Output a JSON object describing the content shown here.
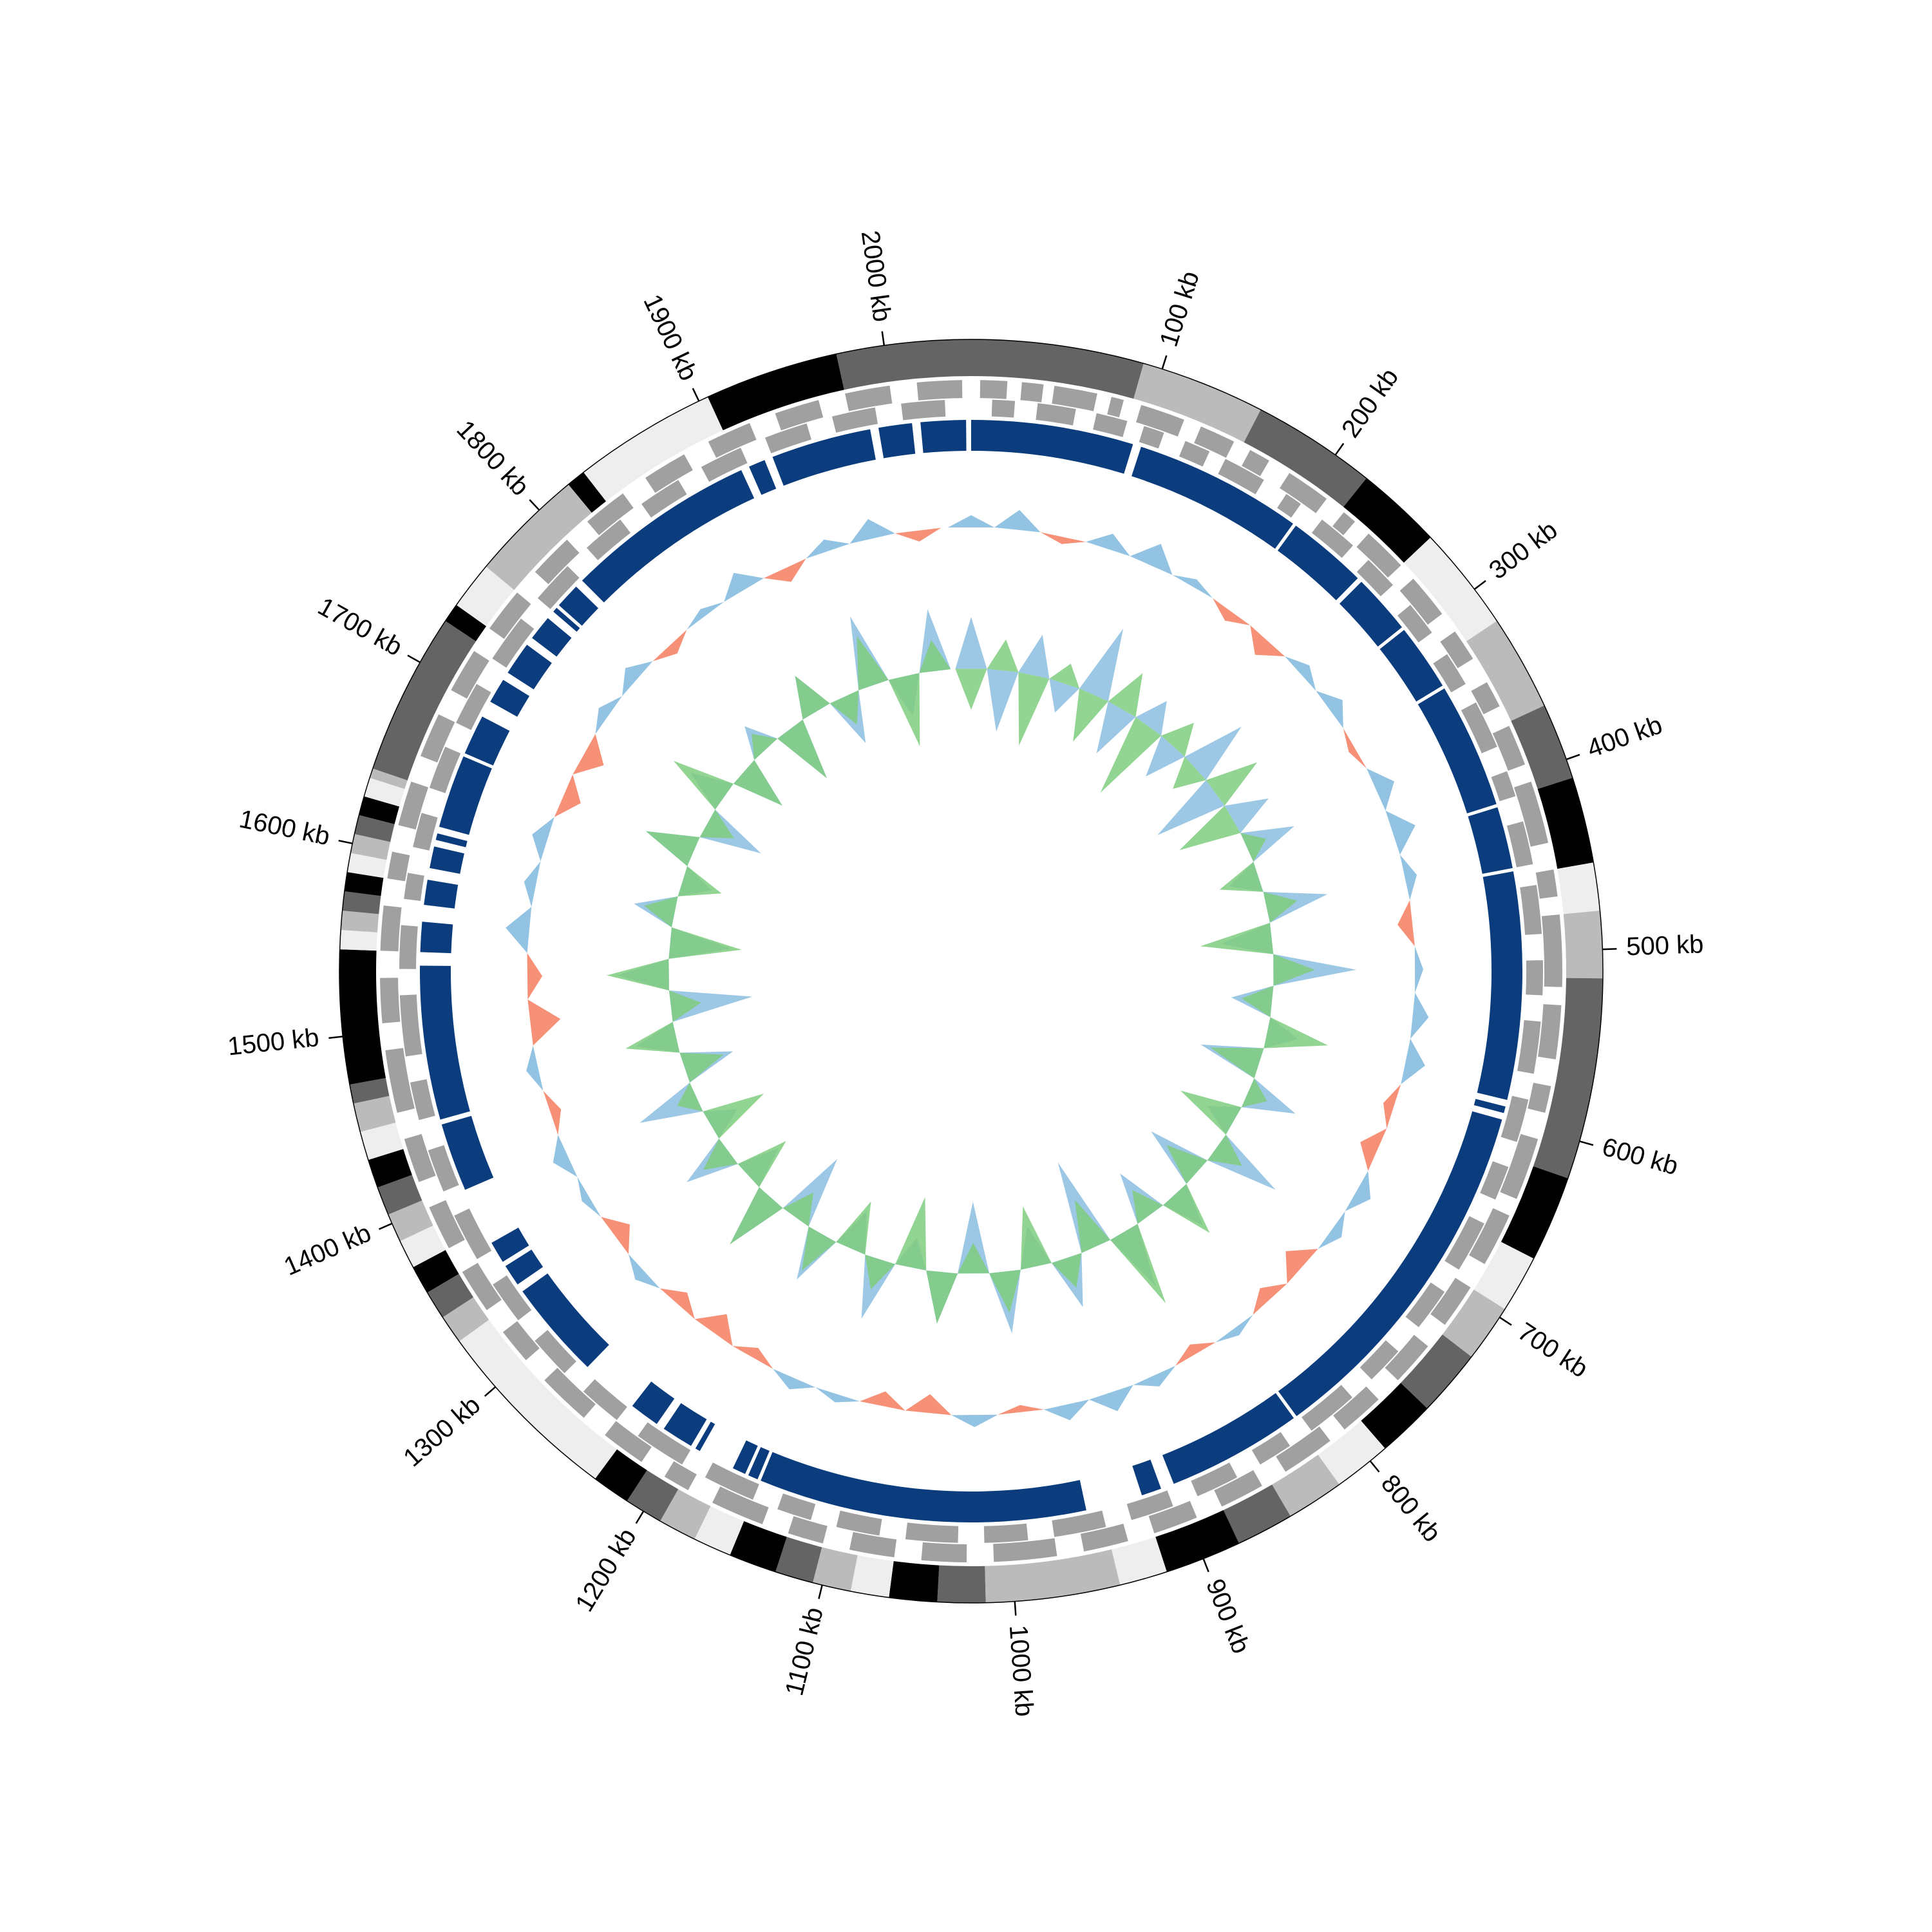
{
  "chart_data": {
    "type": "circos",
    "xlim": [
      0,
      2045
    ],
    "xticks": [
      {
        "value": 100,
        "label": "100 kb"
      },
      {
        "value": 200,
        "label": "200 kb"
      },
      {
        "value": 300,
        "label": "300 kb"
      },
      {
        "value": 400,
        "label": "400 kb"
      },
      {
        "value": 500,
        "label": "500 kb"
      },
      {
        "value": 600,
        "label": "600 kb"
      },
      {
        "value": 700,
        "label": "700 kb"
      },
      {
        "value": 800,
        "label": "800 kb"
      },
      {
        "value": 900,
        "label": "900 kb"
      },
      {
        "value": 1000,
        "label": "1000 kb"
      },
      {
        "value": 1100,
        "label": "1100 kb"
      },
      {
        "value": 1200,
        "label": "1200 kb"
      },
      {
        "value": 1300,
        "label": "1300 kb"
      },
      {
        "value": 1400,
        "label": "1400 kb"
      },
      {
        "value": 1500,
        "label": "1500 kb"
      },
      {
        "value": 1600,
        "label": "1600 kb"
      },
      {
        "value": 1700,
        "label": "1700 kb"
      },
      {
        "value": 1800,
        "label": "1800 kb"
      },
      {
        "value": 1900,
        "label": "1900 kb"
      },
      {
        "value": 2000,
        "label": "2000 kb"
      }
    ],
    "bands": [
      [
        0,
        90,
        "#646464"
      ],
      [
        90,
        155,
        "#bbbbbb"
      ],
      [
        155,
        220,
        "#646464"
      ],
      [
        220,
        265,
        "#000000"
      ],
      [
        265,
        320,
        "#eeeeee"
      ],
      [
        320,
        370,
        "#bbbbbb"
      ],
      [
        370,
        410,
        "#646464"
      ],
      [
        410,
        455,
        "#000000"
      ],
      [
        455,
        480,
        "#eeeeee"
      ],
      [
        480,
        515,
        "#bbbbbb"
      ],
      [
        515,
        620,
        "#646464"
      ],
      [
        620,
        665,
        "#000000"
      ],
      [
        665,
        695,
        "#eeeeee"
      ],
      [
        695,
        725,
        "#bbbbbb"
      ],
      [
        725,
        760,
        "#646464"
      ],
      [
        760,
        790,
        "#000000"
      ],
      [
        790,
        820,
        "#eeeeee"
      ],
      [
        820,
        850,
        "#bbbbbb"
      ],
      [
        850,
        880,
        "#646464"
      ],
      [
        880,
        920,
        "#000000"
      ],
      [
        920,
        945,
        "#eeeeee"
      ],
      [
        945,
        1015,
        "#bbbbbb"
      ],
      [
        1015,
        1040,
        "#646464"
      ],
      [
        1040,
        1065,
        "#000000"
      ],
      [
        1065,
        1085,
        "#eeeeee"
      ],
      [
        1085,
        1105,
        "#bbbbbb"
      ],
      [
        1105,
        1125,
        "#646464"
      ],
      [
        1125,
        1150,
        "#000000"
      ],
      [
        1150,
        1170,
        "#eeeeee"
      ],
      [
        1170,
        1190,
        "#bbbbbb"
      ],
      [
        1190,
        1210,
        "#646464"
      ],
      [
        1210,
        1230,
        "#000000"
      ],
      [
        1230,
        1330,
        "#eeeeee"
      ],
      [
        1330,
        1345,
        "#bbbbbb"
      ],
      [
        1345,
        1360,
        "#646464"
      ],
      [
        1360,
        1375,
        "#000000"
      ],
      [
        1375,
        1390,
        "#eeeeee"
      ],
      [
        1390,
        1405,
        "#bbbbbb"
      ],
      [
        1405,
        1420,
        "#646464"
      ],
      [
        1420,
        1435,
        "#000000"
      ],
      [
        1435,
        1450,
        "#eeeeee"
      ],
      [
        1450,
        1465,
        "#bbbbbb"
      ],
      [
        1465,
        1475,
        "#646464"
      ],
      [
        1475,
        1545,
        "#000000"
      ],
      [
        1545,
        1555,
        "#eeeeee"
      ],
      [
        1555,
        1565,
        "#bbbbbb"
      ],
      [
        1565,
        1575,
        "#646464"
      ],
      [
        1575,
        1585,
        "#000000"
      ],
      [
        1585,
        1595,
        "#eeeeee"
      ],
      [
        1595,
        1605,
        "#bbbbbb"
      ],
      [
        1605,
        1615,
        "#646464"
      ],
      [
        1615,
        1625,
        "#000000"
      ],
      [
        1625,
        1635,
        "#eeeeee"
      ],
      [
        1635,
        1640,
        "#bbbbbb"
      ],
      [
        1640,
        1725,
        "#646464"
      ],
      [
        1725,
        1735,
        "#000000"
      ],
      [
        1735,
        1760,
        "#eeeeee"
      ],
      [
        1760,
        1820,
        "#bbbbbb"
      ],
      [
        1820,
        1830,
        "#000000"
      ],
      [
        1830,
        1905,
        "#eeeeee"
      ],
      [
        1905,
        1975,
        "#000000"
      ],
      [
        1975,
        2045,
        "#646464"
      ]
    ],
    "genes_color": "#a0a0a0",
    "genes_forward": [
      [
        5,
        20
      ],
      [
        28,
        40
      ],
      [
        46,
        70
      ],
      [
        78,
        85
      ],
      [
        95,
        120
      ],
      [
        130,
        150
      ],
      [
        160,
        172
      ],
      [
        185,
        210
      ],
      [
        222,
        230
      ],
      [
        240,
        265
      ],
      [
        275,
        300
      ],
      [
        312,
        330
      ],
      [
        345,
        360
      ],
      [
        372,
        395
      ],
      [
        405,
        440
      ],
      [
        455,
        470
      ],
      [
        480,
        520
      ],
      [
        530,
        560
      ],
      [
        575,
        590
      ],
      [
        605,
        640
      ],
      [
        650,
        680
      ],
      [
        695,
        720
      ],
      [
        735,
        760
      ],
      [
        775,
        800
      ],
      [
        810,
        840
      ],
      [
        855,
        880
      ],
      [
        895,
        920
      ],
      [
        935,
        960
      ],
      [
        975,
        1010
      ],
      [
        1025,
        1050
      ],
      [
        1065,
        1090
      ],
      [
        1105,
        1125
      ],
      [
        1140,
        1170
      ],
      [
        1185,
        1200
      ],
      [
        1215,
        1240
      ],
      [
        1255,
        1285
      ],
      [
        1300,
        1320
      ],
      [
        1335,
        1360
      ],
      [
        1375,
        1400
      ],
      [
        1415,
        1440
      ],
      [
        1455,
        1490
      ],
      [
        1505,
        1530
      ],
      [
        1545,
        1570
      ],
      [
        1585,
        1600
      ],
      [
        1615,
        1640
      ],
      [
        1655,
        1680
      ],
      [
        1695,
        1720
      ],
      [
        1735,
        1760
      ],
      [
        1775,
        1800
      ],
      [
        1815,
        1840
      ],
      [
        1855,
        1880
      ],
      [
        1895,
        1920
      ],
      [
        1935,
        1960
      ],
      [
        1975,
        2000
      ],
      [
        2015,
        2040
      ]
    ],
    "genes_reverse": [
      [
        12,
        25
      ],
      [
        38,
        60
      ],
      [
        72,
        90
      ],
      [
        100,
        112
      ],
      [
        125,
        140
      ],
      [
        150,
        175
      ],
      [
        190,
        200
      ],
      [
        215,
        238
      ],
      [
        250,
        270
      ],
      [
        285,
        305
      ],
      [
        320,
        340
      ],
      [
        352,
        380
      ],
      [
        395,
        410
      ],
      [
        425,
        450
      ],
      [
        462,
        490
      ],
      [
        505,
        525
      ],
      [
        540,
        570
      ],
      [
        585,
        610
      ],
      [
        625,
        645
      ],
      [
        660,
        690
      ],
      [
        705,
        730
      ],
      [
        748,
        770
      ],
      [
        785,
        815
      ],
      [
        830,
        850
      ],
      [
        865,
        890
      ],
      [
        905,
        930
      ],
      [
        945,
        975
      ],
      [
        990,
        1015
      ],
      [
        1030,
        1060
      ],
      [
        1075,
        1100
      ],
      [
        1115,
        1135
      ],
      [
        1150,
        1180
      ],
      [
        1195,
        1225
      ],
      [
        1240,
        1265
      ],
      [
        1280,
        1305
      ],
      [
        1320,
        1345
      ],
      [
        1362,
        1390
      ],
      [
        1405,
        1430
      ],
      [
        1448,
        1470
      ],
      [
        1485,
        1520
      ],
      [
        1535,
        1560
      ],
      [
        1575,
        1590
      ],
      [
        1605,
        1625
      ],
      [
        1640,
        1665
      ],
      [
        1680,
        1705
      ],
      [
        1722,
        1750
      ],
      [
        1765,
        1790
      ],
      [
        1805,
        1830
      ],
      [
        1845,
        1870
      ],
      [
        1885,
        1910
      ],
      [
        1925,
        1950
      ],
      [
        1965,
        1990
      ],
      [
        2005,
        2030
      ]
    ],
    "blocks_color": "#0b3d7e",
    "blocks": [
      [
        0,
        97
      ],
      [
        102,
        203
      ],
      [
        205,
        253
      ],
      [
        256,
        292
      ],
      [
        294,
        334
      ],
      [
        336,
        411
      ],
      [
        413,
        450
      ],
      [
        452,
        588
      ],
      [
        592,
        596
      ],
      [
        600,
        817
      ],
      [
        819,
        900
      ],
      [
        908,
        920
      ],
      [
        954,
        1150
      ],
      [
        1152,
        1158
      ],
      [
        1160,
        1168
      ],
      [
        1190,
        1193
      ],
      [
        1196,
        1215
      ],
      [
        1220,
        1238
      ],
      [
        1273,
        1332
      ],
      [
        1337,
        1350
      ],
      [
        1353,
        1366
      ],
      [
        1401,
        1442
      ],
      [
        1445,
        1537
      ],
      [
        1545,
        1563
      ],
      [
        1573,
        1588
      ],
      [
        1595,
        1608
      ],
      [
        1612,
        1616
      ],
      [
        1620,
        1664
      ],
      [
        1666,
        1690
      ],
      [
        1700,
        1715
      ],
      [
        1720,
        1740
      ],
      [
        1745,
        1760
      ],
      [
        1765,
        1768
      ],
      [
        1770,
        1785
      ],
      [
        1790,
        1905
      ],
      [
        1910,
        1920
      ],
      [
        1925,
        1985
      ],
      [
        1990,
        2010
      ],
      [
        2015,
        2042
      ]
    ],
    "x": [
      0,
      34,
      68,
      102,
      136,
      170,
      204,
      238,
      272,
      306,
      340,
      374,
      408,
      442,
      476,
      510,
      544,
      578,
      612,
      646,
      680,
      714,
      748,
      782,
      816,
      850,
      884,
      918,
      952,
      986,
      1020,
      1054,
      1088,
      1122,
      1156,
      1190,
      1224,
      1258,
      1292,
      1326,
      1360,
      1394,
      1428,
      1462,
      1496,
      1530,
      1564,
      1598,
      1632,
      1666,
      1700,
      1734,
      1768,
      1802,
      1836,
      1870,
      1904,
      1938,
      1972,
      2006
    ],
    "gc_colors": [
      "#7fb8dd",
      "#f47c5f"
    ],
    "gc_values": [
      0.3,
      0.5,
      -0.2,
      0.4,
      0.6,
      0.2,
      -0.3,
      -0.5,
      0.3,
      0.4,
      -0.2,
      0.5,
      0.6,
      0.3,
      -0.4,
      0.2,
      0.4,
      0.5,
      -0.3,
      -0.5,
      0.4,
      0.3,
      -0.6,
      -0.4,
      0.2,
      -0.3,
      0.3,
      0.5,
      0.4,
      -0.2,
      0.3,
      -0.5,
      -0.4,
      0.2,
      0.3,
      -0.3,
      -0.6,
      -0.4,
      0.3,
      -0.5,
      0.2,
      0.4,
      -0.3,
      0.3,
      -0.8,
      -0.4,
      0.6,
      0.3,
      0.4,
      -0.5,
      -0.6,
      0.3,
      0.4,
      -0.3,
      0.2,
      0.5,
      -0.4,
      0.3,
      0.5,
      -0.3
    ],
    "skew_series": [
      {
        "color": "#8bbde0",
        "values": [
          0.5,
          -0.6,
          0.4,
          -0.3,
          0.7,
          -0.5,
          0.3,
          -0.4,
          0.6,
          -0.7,
          0.4,
          0.5,
          -0.3,
          0.6,
          -0.5,
          0.8,
          -0.4,
          0.3,
          -0.6,
          0.5,
          -0.3,
          0.7,
          -0.6,
          0.4,
          -0.5,
          0.6,
          -0.9,
          0.5,
          -0.4,
          0.6,
          -0.7,
          0.5,
          -0.3,
          0.6,
          -0.4,
          0.5,
          -0.7,
          0.6,
          -0.4,
          0.5,
          -0.3,
          0.6,
          -0.5,
          0.4,
          -0.8,
          0.5,
          -0.6,
          0.4,
          -0.3,
          0.5,
          -0.6,
          0.4,
          -0.5,
          0.3,
          -0.6,
          0.4,
          -0.5,
          0.7,
          -0.4,
          0.6
        ]
      },
      {
        "color": "#7fcc7f",
        "values": [
          -0.4,
          0.3,
          -0.7,
          0.2,
          -0.5,
          0.4,
          -0.8,
          0.3,
          -0.3,
          0.5,
          -0.6,
          0.2,
          -0.4,
          0.3,
          -0.7,
          0.4,
          -0.3,
          0.6,
          -0.5,
          0.2,
          -0.6,
          0.3,
          -0.4,
          0.5,
          -0.3,
          0.8,
          -0.5,
          0.3,
          -0.6,
          0.4,
          -0.3,
          0.5,
          -0.7,
          0.3,
          -0.5,
          0.4,
          -0.3,
          0.6,
          -0.5,
          0.3,
          -0.6,
          0.2,
          -0.4,
          0.5,
          -0.3,
          0.6,
          -0.7,
          0.3,
          -0.4,
          0.5,
          -0.3,
          0.6,
          -0.5,
          0.2,
          -0.6,
          0.4,
          -0.3,
          0.5,
          -0.7,
          0.3
        ]
      }
    ]
  }
}
